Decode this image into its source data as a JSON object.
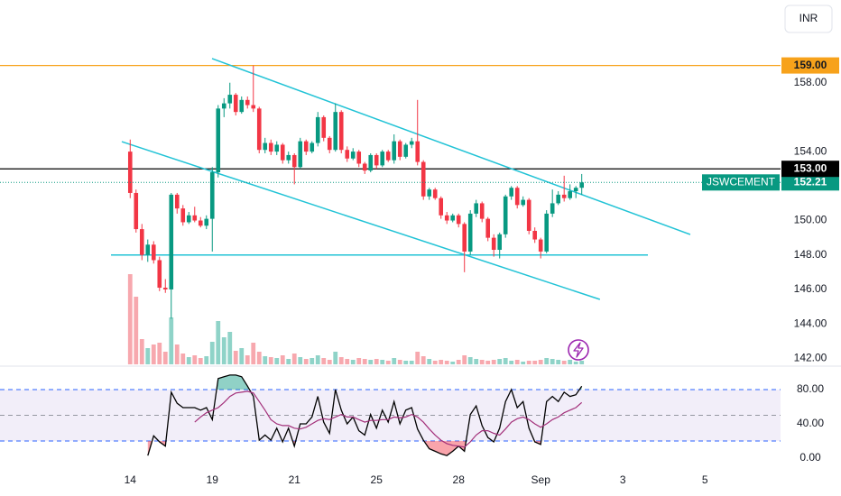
{
  "chart_data": [
    {
      "type": "candlestick",
      "symbol": "JSWCEMENT",
      "currency": "INR",
      "up_color": "#089981",
      "down_color": "#f23645",
      "volume_up_color": "#8fd3c8",
      "volume_down_color": "#f7a8ae",
      "trendline_color": "#22c3d6",
      "xlim": [
        -22.2,
        110.9
      ],
      "ylim": [
        141.6,
        162.8
      ],
      "yticks": [
        {
          "value": 158,
          "label": "158.00"
        },
        {
          "value": 154,
          "label": "154.00"
        },
        {
          "value": 150,
          "label": "150.00"
        },
        {
          "value": 148,
          "label": "148.00"
        },
        {
          "value": 146,
          "label": "146.00"
        },
        {
          "value": 144,
          "label": "144.00"
        },
        {
          "value": 142,
          "label": "142.00"
        }
      ],
      "levels": [
        {
          "value": 159,
          "label": "159.00",
          "color": "#f7a21b",
          "text_color": "#131722"
        },
        {
          "value": 153,
          "label": "153.00",
          "color": "#000000",
          "text_color": "#ffffff"
        }
      ],
      "trendlines": [
        {
          "x": [
            13.96,
            95.5
          ],
          "y": [
            159.4,
            149.19
          ]
        },
        {
          "x": [
            -1.43,
            80.1
          ],
          "y": [
            154.58,
            145.42
          ]
        },
        {
          "x": [
            -3.27,
            88.28
          ],
          "y": [
            148,
            148
          ]
        }
      ],
      "open": [
        154.0,
        151.6,
        149.5,
        148.0,
        148.6,
        147.7,
        146.1,
        146.0,
        151.5,
        150.7,
        149.9,
        150.3,
        150.0,
        149.7,
        150.1,
        152.8,
        156.5,
        156.8,
        157.3,
        156.3,
        157.0,
        156.7,
        156.5,
        154.1,
        154.5,
        154.0,
        154.4,
        153.5,
        153.8,
        153.1,
        154.6,
        154.0,
        154.5,
        156.0,
        154.8,
        154.1,
        156.3,
        154.1,
        153.6,
        154.0,
        153.3,
        152.9,
        153.8,
        153.2,
        154.0,
        153.5,
        154.6,
        153.7,
        154.4,
        154.6,
        153.4,
        151.4,
        151.8,
        151.3,
        150.3,
        150.0,
        150.3,
        149.8,
        148.2,
        150.4,
        151.0,
        150.1,
        149.0,
        148.3,
        149.2,
        151.4,
        151.9,
        150.9,
        151.2,
        149.4,
        148.9,
        148.2,
        150.4,
        151.0,
        151.5,
        151.3,
        151.7,
        151.9
      ],
      "high": [
        154.7,
        151.8,
        149.8,
        148.9,
        148.8,
        147.9,
        146.6,
        151.6,
        151.6,
        150.9,
        150.5,
        150.8,
        150.2,
        150.3,
        153.1,
        156.7,
        157.1,
        158.0,
        157.4,
        157.2,
        157.2,
        159.0,
        156.6,
        154.8,
        154.7,
        154.6,
        154.5,
        154.0,
        153.9,
        154.8,
        154.7,
        154.6,
        156.3,
        156.1,
        154.9,
        156.8,
        156.4,
        154.3,
        154.2,
        154.1,
        153.4,
        153.9,
        153.9,
        154.1,
        154.1,
        155.0,
        154.7,
        154.5,
        154.8,
        157.0,
        153.5,
        151.9,
        151.9,
        151.4,
        150.5,
        150.4,
        150.4,
        149.9,
        150.6,
        151.2,
        151.1,
        150.2,
        149.2,
        149.3,
        151.5,
        152.0,
        152.0,
        151.4,
        151.3,
        149.6,
        149.0,
        150.6,
        151.8,
        151.7,
        152.6,
        152.1,
        152.0,
        152.7
      ],
      "low": [
        151.3,
        149.3,
        147.7,
        147.6,
        147.5,
        145.9,
        145.8,
        144.3,
        150.4,
        149.7,
        149.8,
        149.9,
        149.6,
        149.5,
        148.2,
        152.5,
        156.0,
        156.5,
        156.1,
        156.2,
        156.5,
        156.3,
        153.9,
        153.9,
        153.8,
        153.8,
        153.3,
        153.3,
        152.1,
        153.0,
        153.8,
        153.9,
        154.3,
        154.6,
        153.9,
        154.0,
        153.9,
        153.4,
        153.5,
        153.1,
        152.7,
        152.8,
        153.0,
        153.1,
        153.4,
        153.3,
        153.5,
        153.6,
        154.2,
        153.2,
        151.2,
        151.2,
        151.2,
        150.1,
        149.8,
        149.9,
        149.6,
        147.0,
        148.0,
        150.2,
        149.9,
        148.8,
        147.9,
        147.8,
        149.0,
        151.2,
        150.7,
        150.8,
        149.2,
        148.7,
        147.8,
        148.1,
        150.2,
        150.9,
        151.1,
        151.2,
        151.3,
        151.5
      ],
      "close": [
        151.6,
        149.5,
        148.0,
        148.6,
        147.7,
        146.1,
        146.0,
        151.5,
        150.7,
        149.9,
        150.3,
        150.0,
        149.7,
        150.1,
        152.8,
        156.5,
        156.8,
        157.3,
        156.3,
        157.0,
        156.7,
        156.5,
        154.1,
        154.5,
        154.0,
        154.4,
        153.5,
        153.8,
        153.1,
        154.6,
        154.0,
        154.5,
        156.0,
        154.8,
        154.1,
        156.3,
        154.1,
        153.6,
        154.0,
        153.3,
        152.9,
        153.8,
        153.2,
        154.0,
        153.5,
        154.6,
        153.7,
        154.4,
        154.6,
        153.4,
        151.4,
        151.8,
        151.3,
        150.3,
        150.0,
        150.3,
        149.8,
        148.2,
        150.4,
        151.0,
        150.1,
        149.0,
        148.3,
        149.2,
        151.4,
        151.9,
        150.9,
        151.2,
        149.4,
        148.9,
        148.2,
        150.4,
        151.0,
        151.5,
        151.3,
        151.7,
        151.9,
        152.21
      ],
      "volume": [
        100,
        75,
        28,
        18,
        22,
        24,
        14,
        52,
        22,
        12,
        8,
        10,
        7,
        9,
        25,
        48,
        30,
        36,
        15,
        18,
        10,
        24,
        14,
        9,
        8,
        7,
        10,
        6,
        12,
        8,
        6,
        7,
        10,
        7,
        5,
        14,
        8,
        6,
        5,
        7,
        6,
        5,
        6,
        5,
        4,
        7,
        5,
        4,
        4,
        14,
        9,
        6,
        4,
        5,
        4,
        3,
        5,
        10,
        8,
        6,
        5,
        4,
        5,
        6,
        7,
        4,
        5,
        3,
        4,
        4,
        5,
        7,
        6,
        5,
        4,
        5,
        3,
        4
      ]
    },
    {
      "type": "line",
      "xlim": [
        -22.2,
        110.9
      ],
      "ylim": [
        -12.6,
        103.2
      ],
      "xticks": [
        {
          "value": 0,
          "label": "14"
        },
        {
          "value": 14,
          "label": "19"
        },
        {
          "value": 28,
          "label": "21"
        },
        {
          "value": 42,
          "label": "25"
        },
        {
          "value": 56,
          "label": "28"
        },
        {
          "value": 70,
          "label": "Sep"
        },
        {
          "value": 84,
          "label": "3"
        },
        {
          "value": 98,
          "label": "5"
        }
      ],
      "yticks": [
        {
          "value": 80,
          "label": "80.00"
        },
        {
          "value": 40,
          "label": "40.00"
        },
        {
          "value": 0,
          "label": "0.00"
        }
      ],
      "levels": [
        {
          "value": 80,
          "color": "#2962ff"
        },
        {
          "value": 50,
          "color": "#9598a1"
        },
        {
          "value": 20,
          "color": "#2962ff"
        }
      ],
      "band_color": "#ede7f6",
      "overbought_color": "#089981",
      "oversold_color": "#f23645",
      "series": [
        {
          "color": "#000000",
          "values": [
            null,
            null,
            null,
            3,
            26,
            19,
            14,
            77,
            64,
            59,
            59,
            59,
            56,
            59,
            45,
            93,
            95,
            97,
            97,
            95,
            84,
            72,
            21,
            27,
            21,
            35,
            19,
            35,
            14,
            40,
            40,
            48,
            72,
            42,
            29,
            80,
            56,
            40,
            48,
            32,
            27,
            51,
            35,
            56,
            42,
            66,
            40,
            56,
            59,
            34,
            21,
            11,
            8,
            5,
            3,
            8,
            14,
            8,
            51,
            61,
            38,
            24,
            19,
            35,
            66,
            80,
            59,
            66,
            35,
            19,
            16,
            66,
            72,
            66,
            77,
            72,
            74,
            84
          ]
        },
        {
          "color": "#a3307a",
          "values": [
            null,
            null,
            null,
            null,
            null,
            null,
            null,
            null,
            null,
            null,
            null,
            42,
            48,
            53,
            56,
            59,
            65,
            72,
            76,
            77,
            78,
            76,
            66,
            56,
            45,
            40,
            38,
            38,
            35,
            34,
            36,
            40,
            44,
            46,
            45,
            48,
            51,
            48,
            48,
            45,
            42,
            44,
            44,
            45,
            45,
            48,
            47,
            48,
            51,
            48,
            42,
            34,
            27,
            21,
            17,
            15,
            14,
            13,
            19,
            27,
            32,
            32,
            29,
            27,
            34,
            42,
            46,
            48,
            45,
            40,
            36,
            40,
            45,
            48,
            53,
            56,
            59,
            65
          ]
        }
      ]
    }
  ]
}
